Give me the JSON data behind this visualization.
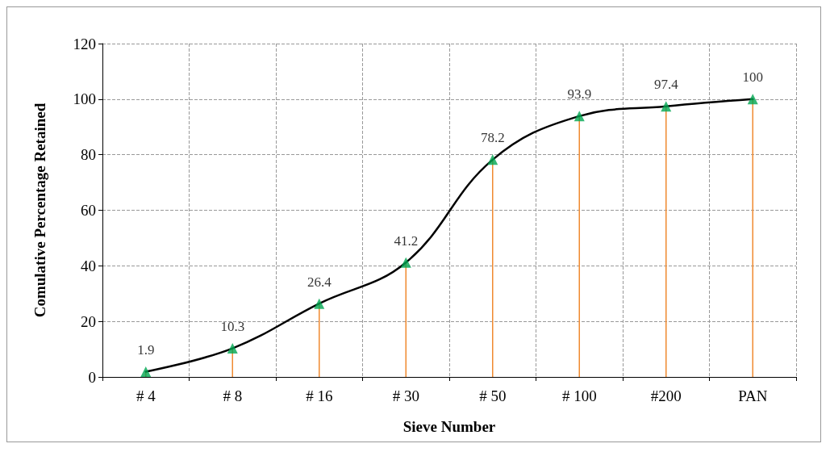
{
  "chart_data": {
    "type": "line",
    "xlabel": "Sieve Number",
    "ylabel": "Comulative Percentage Retained",
    "categories": [
      "# 4",
      "# 8",
      "# 16",
      "# 30",
      "# 50",
      "# 100",
      "#200",
      "PAN"
    ],
    "series": [
      {
        "color": "#000000",
        "marker": "none",
        "values": [
          1.9,
          10.3,
          26.4,
          41.2,
          78.2,
          93.9,
          97.4,
          100
        ],
        "value_labels": [
          null,
          null,
          null,
          null,
          null,
          null,
          null,
          null
        ]
      },
      {
        "type": "lollipop",
        "color": "#f08a30",
        "marker": "triangle",
        "colors": [
          "#00a651",
          "#00a651",
          "#00a651",
          "#00a651",
          "#00a651",
          "#00a651",
          "#00a651",
          "#00a651"
        ],
        "values": [
          1.9,
          10.3,
          26.4,
          41.2,
          78.2,
          93.9,
          97.4,
          100
        ]
      }
    ],
    "ylim": [
      0,
      120
    ],
    "yticks": [
      0,
      20,
      40,
      60,
      80,
      100,
      120
    ],
    "grid": true,
    "data_labels": true,
    "line_style": "solid"
  }
}
